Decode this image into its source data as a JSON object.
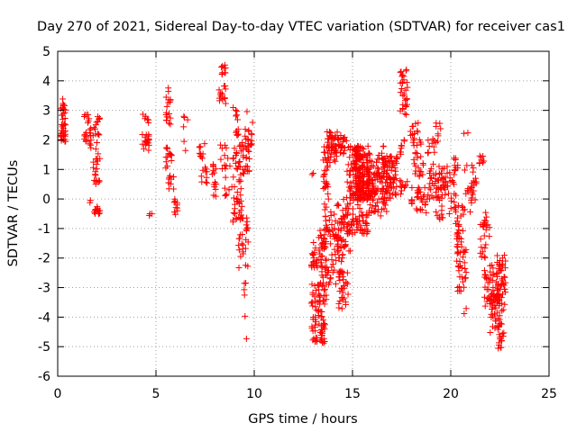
{
  "chart_data": {
    "type": "scatter",
    "title": "Day 270 of 2021, Sidereal Day-to-day VTEC variation (SDTVAR) for receiver cas1",
    "xlabel": "GPS time / hours",
    "ylabel": "SDTVAR / TECUs",
    "xlim": [
      0,
      25
    ],
    "ylim": [
      -6,
      5
    ],
    "xticks": [
      0,
      5,
      10,
      15,
      20,
      25
    ],
    "yticks": [
      -6,
      -5,
      -4,
      -3,
      -2,
      -1,
      0,
      1,
      2,
      3,
      4,
      5
    ],
    "grid": true,
    "marker": "+",
    "colors": {
      "points": "#ff0000",
      "grid": "#a0a0a0",
      "axis": "#000000"
    },
    "series": [
      {
        "name": "SDTVAR",
        "clusters": [
          {
            "x0": 0.15,
            "x1": 0.4,
            "y0": 1.9,
            "y1": 3.4,
            "n": 40
          },
          {
            "x0": 1.35,
            "x1": 1.7,
            "y0": 1.7,
            "y1": 2.9,
            "n": 25
          },
          {
            "x0": 1.6,
            "x1": 1.75,
            "y0": -0.2,
            "y1": 0.0,
            "n": 2
          },
          {
            "x0": 1.8,
            "x1": 2.15,
            "y0": 0.5,
            "y1": 2.8,
            "n": 35
          },
          {
            "x0": 1.85,
            "x1": 2.15,
            "y0": -0.6,
            "y1": -0.2,
            "n": 14
          },
          {
            "x0": 4.3,
            "x1": 4.65,
            "y0": 1.6,
            "y1": 2.9,
            "n": 25
          },
          {
            "x0": 4.65,
            "x1": 4.85,
            "y0": -0.65,
            "y1": -0.5,
            "n": 3
          },
          {
            "x0": 5.5,
            "x1": 5.8,
            "y0": 2.4,
            "y1": 3.8,
            "n": 18
          },
          {
            "x0": 5.5,
            "x1": 5.8,
            "y0": 1.0,
            "y1": 1.8,
            "n": 14
          },
          {
            "x0": 5.6,
            "x1": 6.0,
            "y0": 0.3,
            "y1": 0.9,
            "n": 10
          },
          {
            "x0": 5.9,
            "x1": 6.1,
            "y0": -0.55,
            "y1": 0.1,
            "n": 10
          },
          {
            "x0": 6.4,
            "x1": 6.7,
            "y0": 1.6,
            "y1": 3.0,
            "n": 6
          },
          {
            "x0": 7.2,
            "x1": 7.5,
            "y0": 1.3,
            "y1": 1.9,
            "n": 10
          },
          {
            "x0": 7.3,
            "x1": 7.6,
            "y0": 0.2,
            "y1": 1.1,
            "n": 10
          },
          {
            "x0": 7.8,
            "x1": 8.1,
            "y0": 0.0,
            "y1": 1.3,
            "n": 14
          },
          {
            "x0": 8.2,
            "x1": 8.55,
            "y0": 3.2,
            "y1": 3.9,
            "n": 14
          },
          {
            "x0": 8.3,
            "x1": 8.55,
            "y0": 4.2,
            "y1": 4.55,
            "n": 10
          },
          {
            "x0": 8.2,
            "x1": 8.8,
            "y0": 1.0,
            "y1": 1.9,
            "n": 12
          },
          {
            "x0": 8.5,
            "x1": 8.9,
            "y0": 0.1,
            "y1": 0.8,
            "n": 8
          },
          {
            "x0": 8.9,
            "x1": 9.2,
            "y0": 2.6,
            "y1": 3.1,
            "n": 6
          },
          {
            "x0": 8.9,
            "x1": 9.9,
            "y0": 0.8,
            "y1": 2.4,
            "n": 55
          },
          {
            "x0": 8.9,
            "x1": 9.4,
            "y0": -0.8,
            "y1": 0.8,
            "n": 30
          },
          {
            "x0": 9.2,
            "x1": 9.7,
            "y0": -2.5,
            "y1": -0.5,
            "n": 28
          },
          {
            "x0": 9.4,
            "x1": 9.7,
            "y0": -3.3,
            "y1": -2.7,
            "n": 4
          },
          {
            "x0": 9.5,
            "x1": 9.7,
            "y0": -4.8,
            "y1": -3.8,
            "n": 2
          },
          {
            "x0": 9.6,
            "x1": 10.0,
            "y0": 1.8,
            "y1": 3.0,
            "n": 8
          },
          {
            "x0": 12.9,
            "x1": 13.1,
            "y0": 0.8,
            "y1": 0.9,
            "n": 2
          },
          {
            "x0": 12.9,
            "x1": 13.5,
            "y0": -2.6,
            "y1": -1.2,
            "n": 30
          },
          {
            "x0": 12.9,
            "x1": 13.6,
            "y0": -4.9,
            "y1": -2.8,
            "n": 80
          },
          {
            "x0": 13.3,
            "x1": 13.8,
            "y0": -3.6,
            "y1": -1.0,
            "n": 35
          },
          {
            "x0": 13.5,
            "x1": 13.8,
            "y0": 0.5,
            "y1": 1.9,
            "n": 22
          },
          {
            "x0": 13.7,
            "x1": 14.3,
            "y0": 1.2,
            "y1": 2.3,
            "n": 40
          },
          {
            "x0": 13.6,
            "x1": 14.6,
            "y0": -3.0,
            "y1": -0.5,
            "n": 70
          },
          {
            "x0": 13.5,
            "x1": 13.9,
            "y0": -0.8,
            "y1": 0.5,
            "n": 14
          },
          {
            "x0": 14.0,
            "x1": 14.7,
            "y0": 1.5,
            "y1": 2.2,
            "n": 30
          },
          {
            "x0": 14.3,
            "x1": 14.8,
            "y0": -3.8,
            "y1": -2.4,
            "n": 28
          },
          {
            "x0": 14.2,
            "x1": 14.9,
            "y0": -1.8,
            "y1": 0.0,
            "n": 32
          },
          {
            "x0": 14.7,
            "x1": 15.4,
            "y0": -1.2,
            "y1": 1.8,
            "n": 90
          },
          {
            "x0": 15.1,
            "x1": 15.9,
            "y0": 0.0,
            "y1": 1.8,
            "n": 140
          },
          {
            "x0": 15.2,
            "x1": 15.8,
            "y0": -1.2,
            "y1": 0.3,
            "n": 40
          },
          {
            "x0": 15.7,
            "x1": 16.3,
            "y0": -0.5,
            "y1": 1.5,
            "n": 60
          },
          {
            "x0": 16.1,
            "x1": 16.8,
            "y0": -0.6,
            "y1": 1.4,
            "n": 60
          },
          {
            "x0": 16.7,
            "x1": 17.3,
            "y0": 0.0,
            "y1": 1.5,
            "n": 55
          },
          {
            "x0": 16.3,
            "x1": 16.7,
            "y0": 1.3,
            "y1": 1.8,
            "n": 10
          },
          {
            "x0": 17.4,
            "x1": 17.8,
            "y0": 2.8,
            "y1": 4.5,
            "n": 30
          },
          {
            "x0": 17.4,
            "x1": 17.7,
            "y0": 1.5,
            "y1": 2.0,
            "n": 8
          },
          {
            "x0": 17.4,
            "x1": 17.8,
            "y0": 0.1,
            "y1": 0.8,
            "n": 12
          },
          {
            "x0": 17.9,
            "x1": 18.5,
            "y0": 1.8,
            "y1": 2.6,
            "n": 18
          },
          {
            "x0": 18.1,
            "x1": 18.6,
            "y0": 0.7,
            "y1": 1.6,
            "n": 18
          },
          {
            "x0": 18.0,
            "x1": 18.9,
            "y0": -0.5,
            "y1": 0.4,
            "n": 32
          },
          {
            "x0": 18.8,
            "x1": 19.2,
            "y0": 1.5,
            "y1": 2.1,
            "n": 10
          },
          {
            "x0": 18.9,
            "x1": 19.9,
            "y0": 0.0,
            "y1": 1.2,
            "n": 60
          },
          {
            "x0": 19.2,
            "x1": 19.5,
            "y0": 1.9,
            "y1": 2.7,
            "n": 8
          },
          {
            "x0": 19.2,
            "x1": 19.6,
            "y0": -0.7,
            "y1": 0.0,
            "n": 10
          },
          {
            "x0": 19.9,
            "x1": 20.3,
            "y0": -0.5,
            "y1": 1.0,
            "n": 18
          },
          {
            "x0": 20.1,
            "x1": 20.4,
            "y0": 0.8,
            "y1": 1.5,
            "n": 8
          },
          {
            "x0": 20.2,
            "x1": 20.7,
            "y0": -1.5,
            "y1": -0.2,
            "n": 24
          },
          {
            "x0": 20.3,
            "x1": 20.8,
            "y0": -3.2,
            "y1": -1.5,
            "n": 34
          },
          {
            "x0": 20.6,
            "x1": 20.9,
            "y0": 2.1,
            "y1": 2.3,
            "n": 2
          },
          {
            "x0": 20.6,
            "x1": 20.9,
            "y0": -3.9,
            "y1": -3.6,
            "n": 2
          },
          {
            "x0": 20.7,
            "x1": 21.2,
            "y0": -0.5,
            "y1": 1.2,
            "n": 18
          },
          {
            "x0": 21.0,
            "x1": 21.3,
            "y0": -0.1,
            "y1": 0.7,
            "n": 10
          },
          {
            "x0": 21.4,
            "x1": 21.7,
            "y0": 1.0,
            "y1": 1.5,
            "n": 8
          },
          {
            "x0": 21.4,
            "x1": 21.8,
            "y0": -2.0,
            "y1": -0.7,
            "n": 14
          },
          {
            "x0": 21.7,
            "x1": 22.0,
            "y0": -1.3,
            "y1": -0.3,
            "n": 10
          },
          {
            "x0": 21.7,
            "x1": 22.2,
            "y0": -3.8,
            "y1": -2.2,
            "n": 30
          },
          {
            "x0": 22.0,
            "x1": 22.5,
            "y0": -4.6,
            "y1": -3.2,
            "n": 45
          },
          {
            "x0": 22.3,
            "x1": 22.8,
            "y0": -3.8,
            "y1": -1.9,
            "n": 55
          },
          {
            "x0": 22.4,
            "x1": 22.7,
            "y0": -5.1,
            "y1": -4.2,
            "n": 15
          }
        ]
      }
    ]
  }
}
